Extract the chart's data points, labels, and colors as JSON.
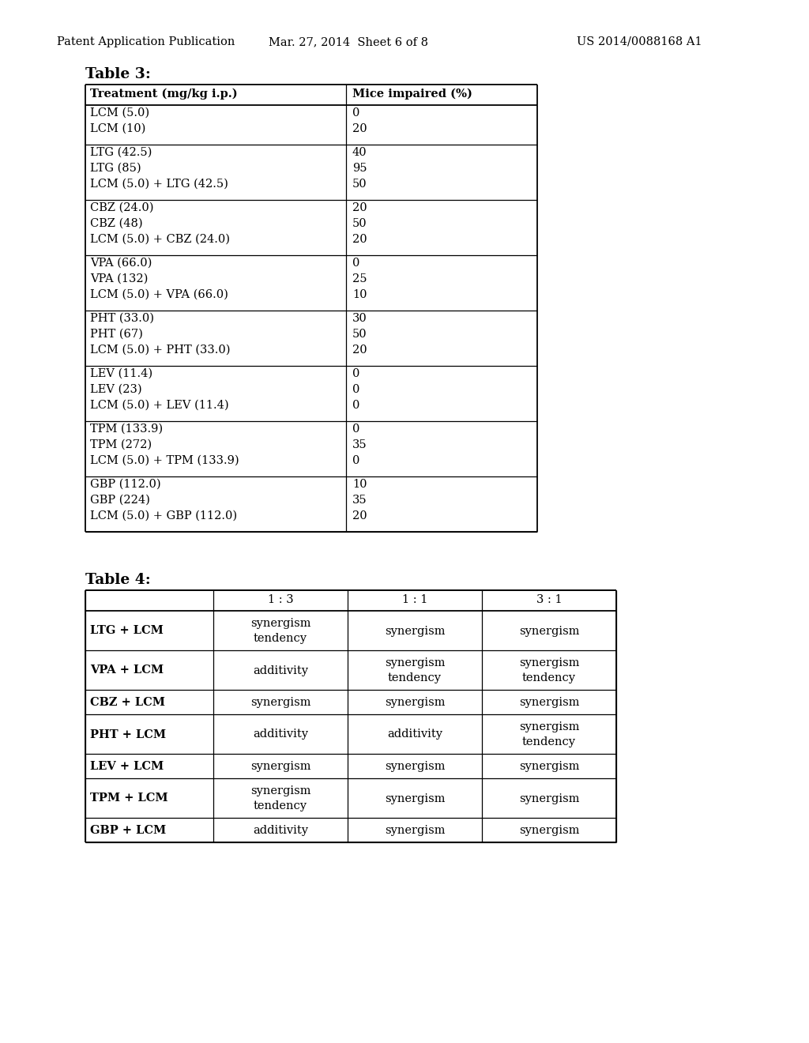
{
  "header_left": "Patent Application Publication",
  "header_mid": "Mar. 27, 2014  Sheet 6 of 8",
  "header_right": "US 2014/0088168 A1",
  "table3_title": "Table 3:",
  "table3_col1_header": "Treatment (mg/kg i.p.)",
  "table3_col2_header": "Mice impaired (%)",
  "table3_groups": [
    {
      "rows": [
        [
          "LCM (5.0)",
          "0"
        ],
        [
          "LCM (10)",
          "20"
        ]
      ]
    },
    {
      "rows": [
        [
          "LTG (42.5)",
          "40"
        ],
        [
          "LTG (85)",
          "95"
        ],
        [
          "LCM (5.0) + LTG (42.5)",
          "50"
        ]
      ]
    },
    {
      "rows": [
        [
          "CBZ (24.0)",
          "20"
        ],
        [
          "CBZ (48)",
          "50"
        ],
        [
          "LCM (5.0) + CBZ (24.0)",
          "20"
        ]
      ]
    },
    {
      "rows": [
        [
          "VPA (66.0)",
          "0"
        ],
        [
          "VPA (132)",
          "25"
        ],
        [
          "LCM (5.0) + VPA (66.0)",
          "10"
        ]
      ]
    },
    {
      "rows": [
        [
          "PHT (33.0)",
          "30"
        ],
        [
          "PHT (67)",
          "50"
        ],
        [
          "LCM (5.0) + PHT (33.0)",
          "20"
        ]
      ]
    },
    {
      "rows": [
        [
          "LEV (11.4)",
          "0"
        ],
        [
          "LEV (23)",
          "0"
        ],
        [
          "LCM (5.0) + LEV (11.4)",
          "0"
        ]
      ]
    },
    {
      "rows": [
        [
          "TPM (133.9)",
          "0"
        ],
        [
          "TPM (272)",
          "35"
        ],
        [
          "LCM (5.0) + TPM (133.9)",
          "0"
        ]
      ]
    },
    {
      "rows": [
        [
          "GBP (112.0)",
          "10"
        ],
        [
          "GBP (224)",
          "35"
        ],
        [
          "LCM (5.0) + GBP (112.0)",
          "20"
        ]
      ]
    }
  ],
  "table4_title": "Table 4:",
  "table4_col_headers": [
    "",
    "1 : 3",
    "1 : 1",
    "3 : 1"
  ],
  "table4_rows": [
    [
      "LTG + LCM",
      "synergism\ntendency",
      "synergism",
      "synergism"
    ],
    [
      "VPA + LCM",
      "additivity",
      "synergism\ntendency",
      "synergism\ntendency"
    ],
    [
      "CBZ + LCM",
      "synergism",
      "synergism",
      "synergism"
    ],
    [
      "PHT + LCM",
      "additivity",
      "additivity",
      "synergism\ntendency"
    ],
    [
      "LEV + LCM",
      "synergism",
      "synergism",
      "synergism"
    ],
    [
      "TPM + LCM",
      "synergism\ntendency",
      "synergism",
      "synergism"
    ],
    [
      "GBP + LCM",
      "additivity",
      "synergism",
      "synergism"
    ]
  ],
  "bg_color": "#ffffff",
  "font_family": "DejaVu Serif",
  "font_size_header": 10.5,
  "font_size_table": 10.5,
  "font_size_title": 13.5
}
